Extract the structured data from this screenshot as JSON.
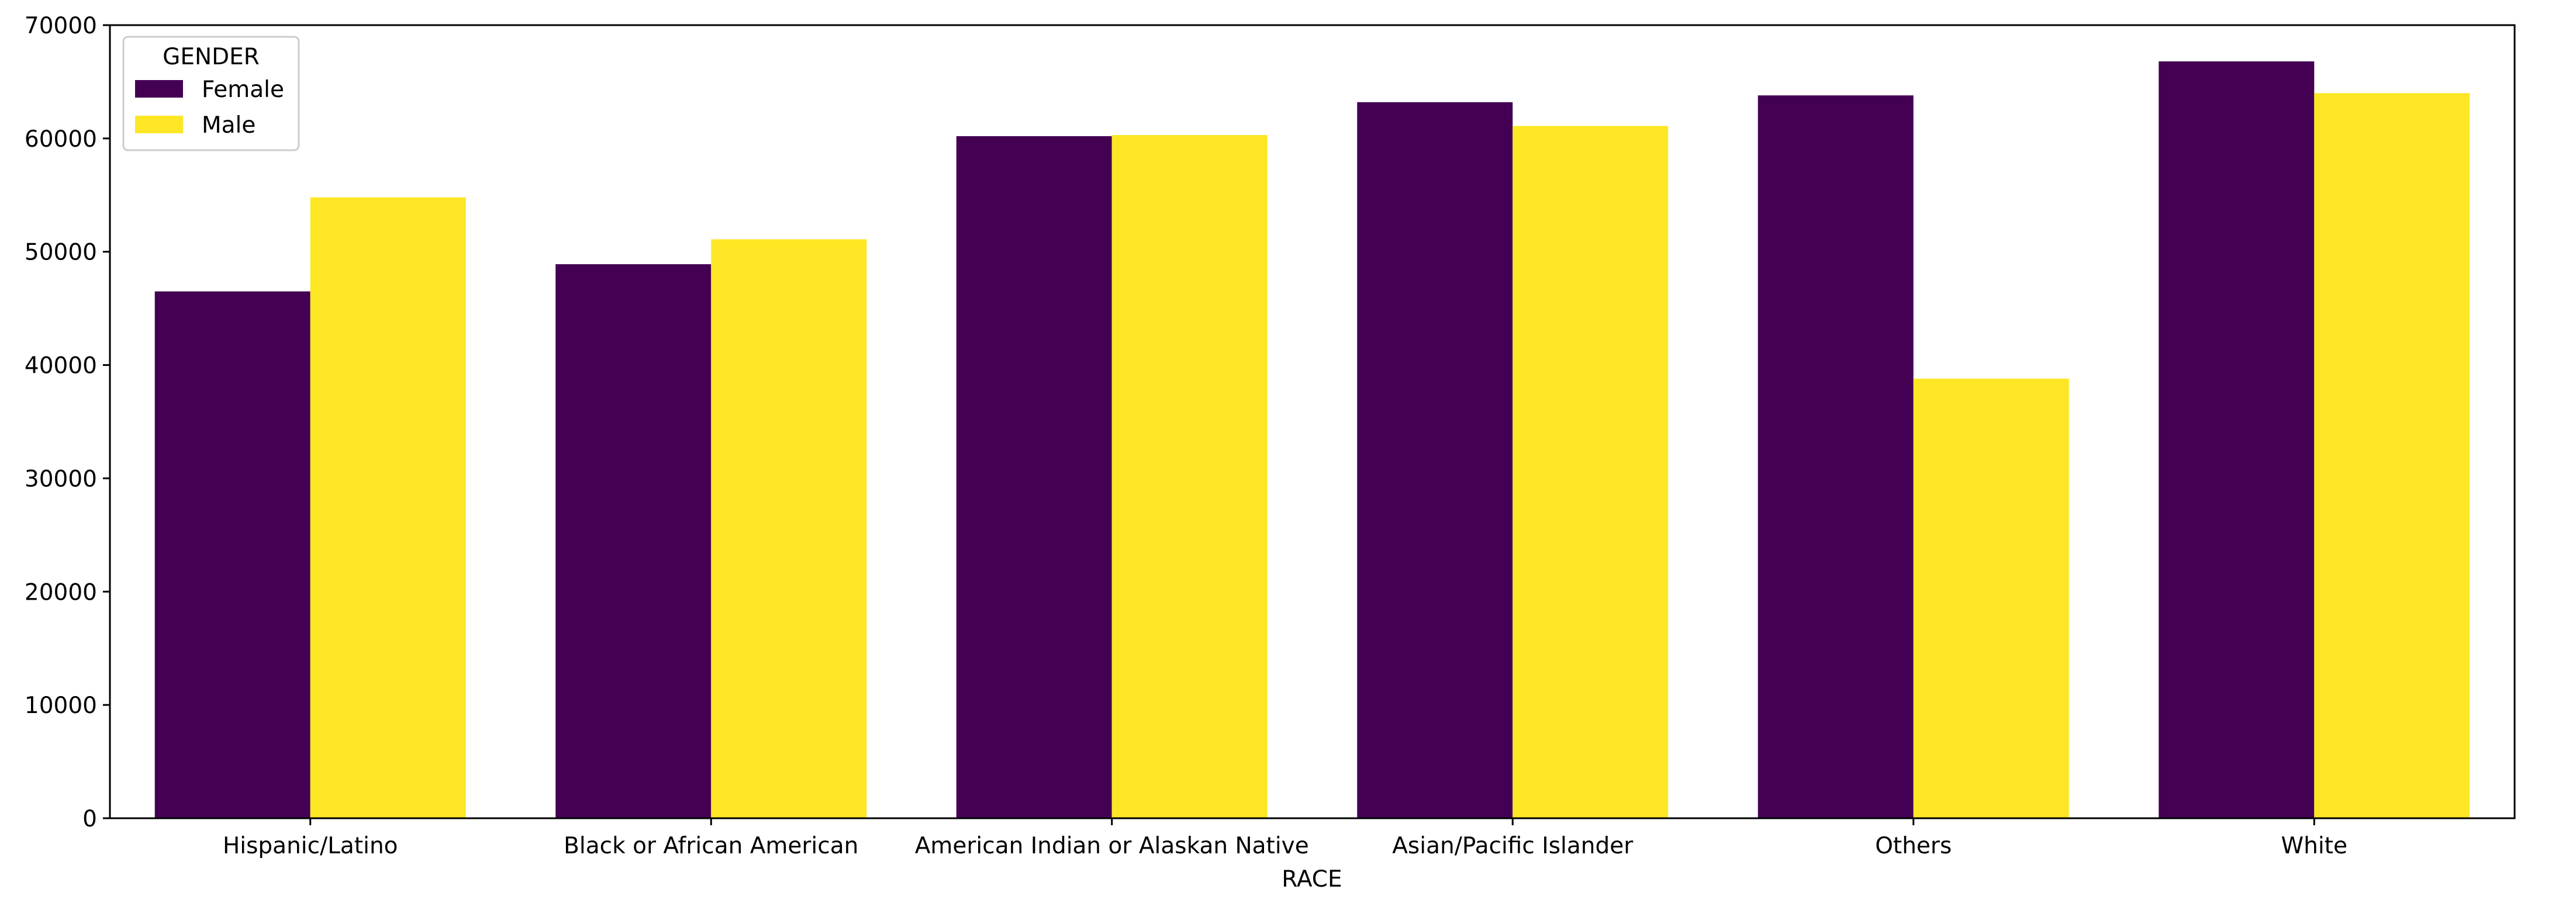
{
  "chart_data": {
    "type": "bar",
    "title": "",
    "xlabel": "RACE",
    "ylabel": "",
    "ylim": [
      0,
      70000
    ],
    "yticks": [
      0,
      10000,
      20000,
      30000,
      40000,
      50000,
      60000,
      70000
    ],
    "ytick_labels": [
      "0",
      "10000",
      "20000",
      "30000",
      "40000",
      "50000",
      "60000",
      "70000"
    ],
    "categories": [
      "Hispanic/Latino",
      "Black or African American",
      "American Indian or Alaskan Native",
      "Asian/Pacific Islander",
      "Others",
      "White"
    ],
    "legend": {
      "title": "GENDER",
      "placement": "top-left"
    },
    "grid": false,
    "series": [
      {
        "name": "Female",
        "color": "#440154",
        "values": [
          46500,
          48900,
          60200,
          63200,
          63800,
          66800
        ]
      },
      {
        "name": "Male",
        "color": "#fde725",
        "values": [
          54800,
          51100,
          60300,
          61100,
          38800,
          64000
        ]
      }
    ]
  }
}
